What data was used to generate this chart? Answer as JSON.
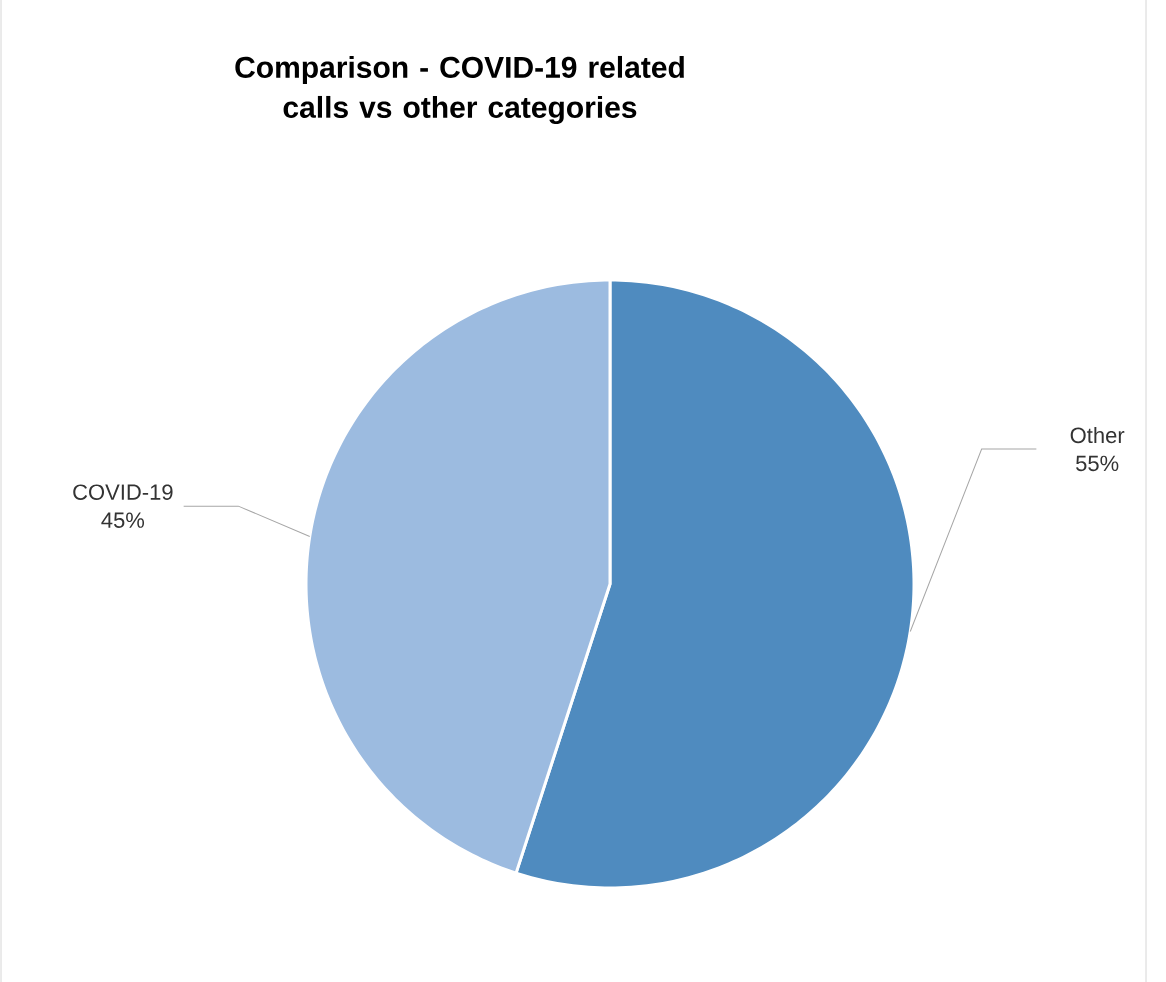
{
  "chart_data": {
    "type": "pie",
    "title": "Comparison - COVID-19 related calls vs other categories",
    "categories": [
      "Other",
      "COVID-19"
    ],
    "values": [
      55,
      45
    ],
    "value_labels": [
      "55%",
      "45%"
    ],
    "colors": [
      "#4f8bbf",
      "#9cbbe0"
    ]
  }
}
